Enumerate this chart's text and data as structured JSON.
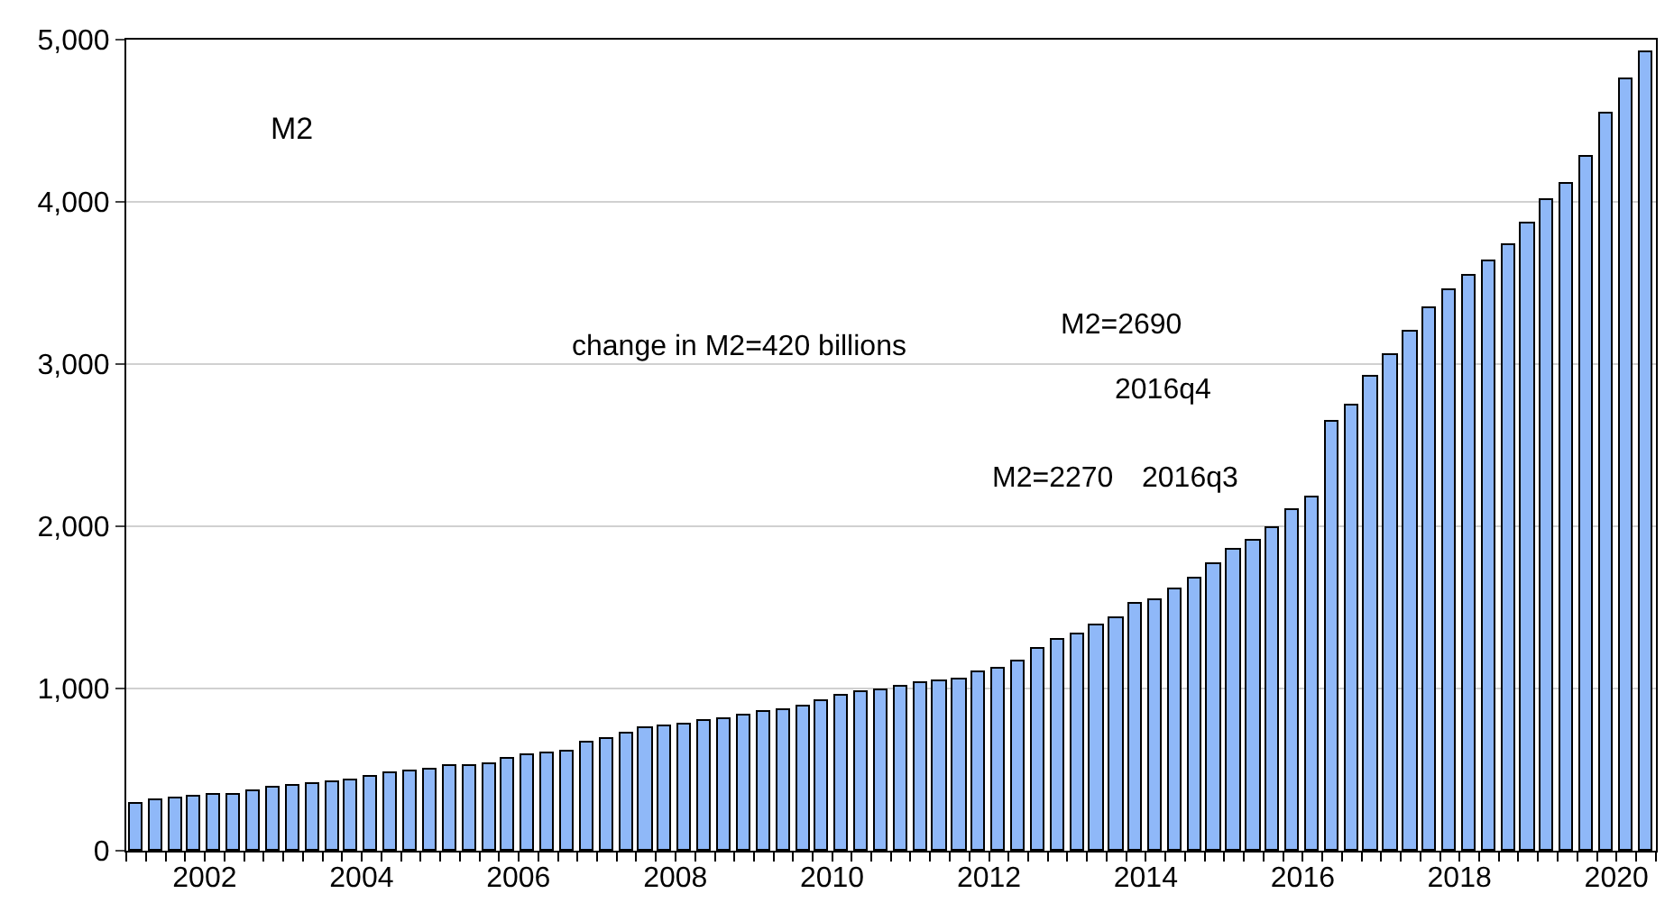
{
  "chart_data": {
    "type": "bar",
    "x": [
      "2001-08-15",
      "2001-11-15",
      "2002-02-15",
      "2002-05-15",
      "2002-08-15",
      "2002-11-15",
      "2003-02-15",
      "2003-05-15",
      "2003-08-15",
      "2003-11-15",
      "2004-02-15",
      "2004-05-15",
      "2004-08-15",
      "2004-11-15",
      "2005-02-15",
      "2005-05-15",
      "2005-08-15",
      "2005-11-15",
      "2006-02-15",
      "2006-05-15",
      "2006-08-15",
      "2006-11-15",
      "2007-02-15",
      "2007-05-15",
      "2007-08-15",
      "2007-11-15",
      "2008-02-15",
      "2008-05-15",
      "2008-08-15",
      "2008-11-15",
      "2009-02-15",
      "2009-05-15",
      "2009-08-15",
      "2009-11-15",
      "2010-02-15",
      "2010-05-15",
      "2010-08-15",
      "2010-11-15",
      "2011-02-15",
      "2011-05-15",
      "2011-08-15",
      "2011-11-15",
      "2012-02-15",
      "2012-05-15",
      "2012-08-15",
      "2012-11-15",
      "2013-02-15",
      "2013-05-15",
      "2013-08-15",
      "2013-11-15",
      "2014-02-15",
      "2014-05-15",
      "2014-08-15",
      "2014-11-15",
      "2015-02-15",
      "2015-05-15",
      "2015-08-15",
      "2015-11-15",
      "2016-02-15",
      "2016-05-15",
      "2016-08-15",
      "2016-11-15",
      "2017-02-15",
      "2017-05-15",
      "2017-08-15",
      "2017-11-15",
      "2018-02-15",
      "2018-05-15",
      "2018-08-15",
      "2018-11-15",
      "2019-02-15",
      "2019-05-15",
      "2019-08-15",
      "2019-11-15",
      "2020-02-15",
      "2020-05-15",
      "2020-08-15",
      "2020-11-15"
    ],
    "values": [
      287,
      309,
      323,
      331,
      342,
      349,
      368,
      390,
      404,
      415,
      426,
      437,
      452,
      474,
      485,
      496,
      518,
      526,
      537,
      562,
      584,
      603,
      614,
      665,
      687,
      717,
      757,
      770,
      781,
      796,
      811,
      837,
      852,
      867,
      893,
      919,
      952,
      978,
      989,
      1011,
      1030,
      1041,
      1059,
      1096,
      1126,
      1170,
      1241,
      1300,
      1337,
      1393,
      1437,
      1519,
      1548,
      1607,
      1682,
      1767,
      1852,
      1908,
      1989,
      2096,
      2182,
      2648,
      2745,
      2919,
      3052,
      3204,
      3345,
      3456,
      3548,
      3630,
      3730,
      3867,
      4011,
      4111,
      4278,
      4545,
      4760,
      4923
    ],
    "color": "#8fb8f8",
    "xlim": [
      "2001-07-01",
      "2021-01-01"
    ],
    "xticks": [
      {
        "value": "2002-07-01",
        "label": "2002"
      },
      {
        "value": "2004-07-01",
        "label": "2004"
      },
      {
        "value": "2006-07-01",
        "label": "2006"
      },
      {
        "value": "2008-07-01",
        "label": "2008"
      },
      {
        "value": "2010-07-01",
        "label": "2010"
      },
      {
        "value": "2012-07-01",
        "label": "2012"
      },
      {
        "value": "2014-07-01",
        "label": "2014"
      },
      {
        "value": "2016-07-01",
        "label": "2016"
      },
      {
        "value": "2018-07-01",
        "label": "2018"
      },
      {
        "value": "2020-07-01",
        "label": "2020"
      }
    ],
    "ylim": [
      0,
      5000
    ],
    "yticks": [
      {
        "value": 0,
        "label": "0"
      },
      {
        "value": 1000,
        "label": "1,000"
      },
      {
        "value": 2000,
        "label": "2,000"
      },
      {
        "value": 3000,
        "label": "3,000"
      },
      {
        "value": 4000,
        "label": "4,000"
      },
      {
        "value": 5000,
        "label": "5,000"
      }
    ],
    "grid": "y",
    "annotations": [
      "M2",
      "change in M2=420 billions",
      "M2=2690",
      "2016q4",
      "M2=2270",
      "2016q3"
    ]
  }
}
